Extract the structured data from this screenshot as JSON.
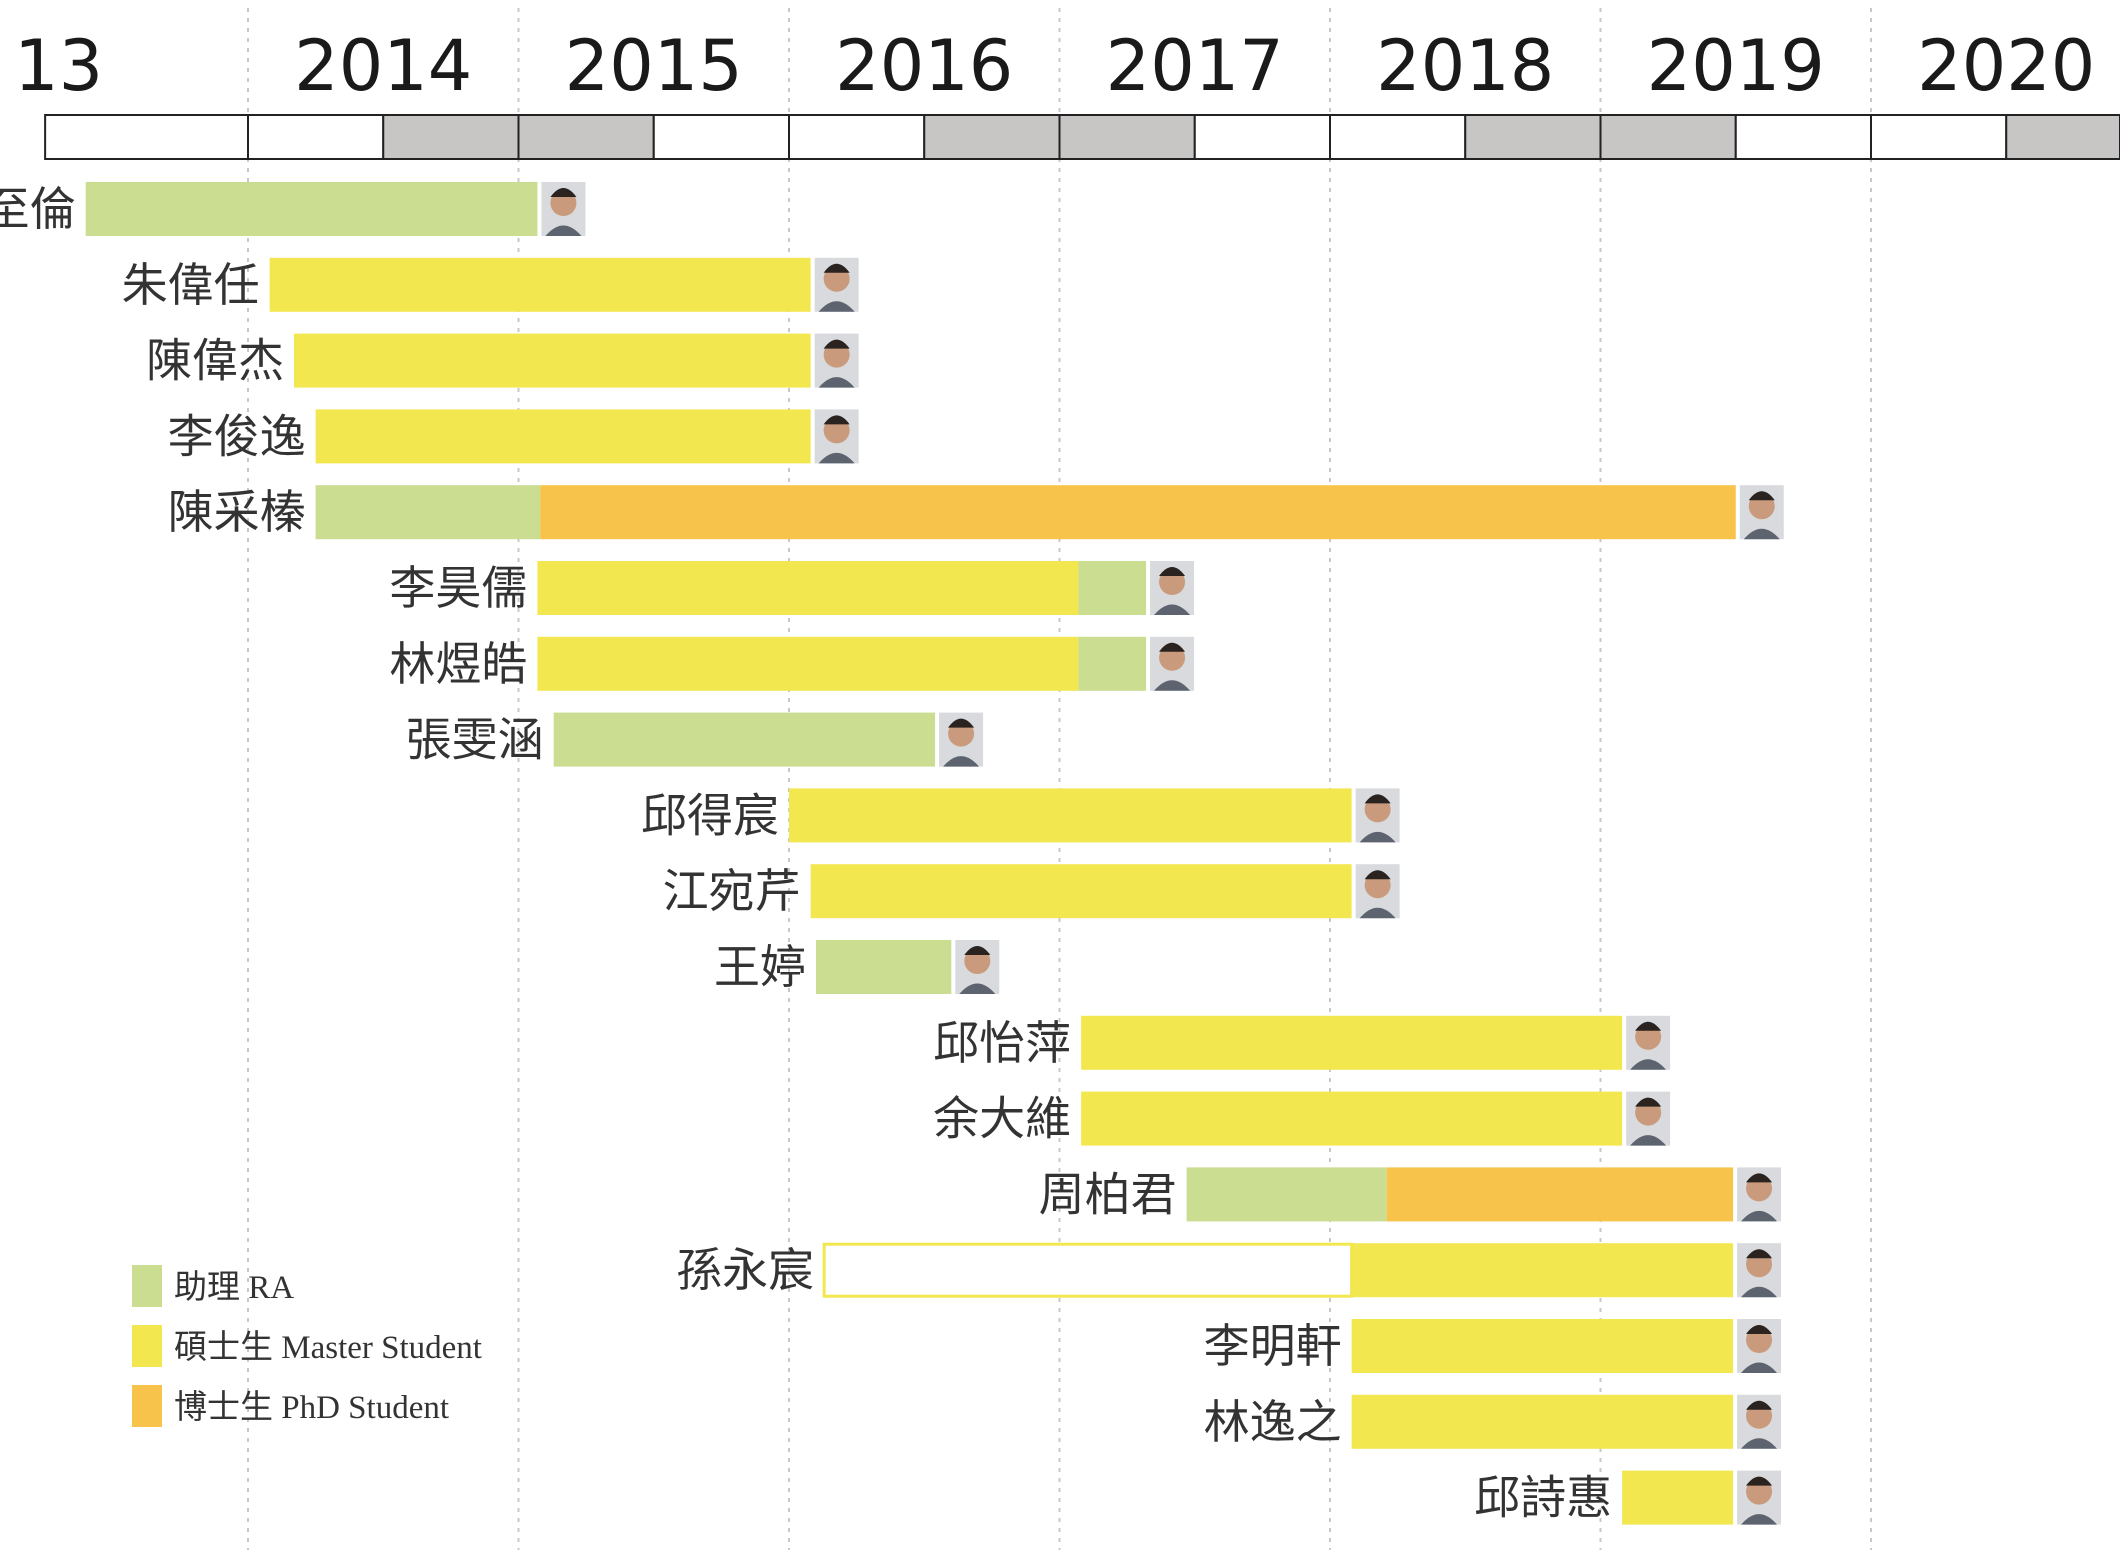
{
  "chart_data": {
    "type": "gantt",
    "x_axis": {
      "tick_labels": [
        "13",
        "2014",
        "2015",
        "2016",
        "2017",
        "2018",
        "2019",
        "2020"
      ],
      "range": [
        2013.25,
        2020.9
      ],
      "gridlines": true,
      "half_year_bands": true
    },
    "colors": {
      "RA": "#cadd90",
      "Master": "#f2e74f",
      "PhD": "#f7c34a",
      "band_shaded": "#c8c6c4"
    },
    "legend": {
      "placement": "bottom-left",
      "entries": [
        {
          "key": "RA",
          "label": "助理 RA"
        },
        {
          "key": "Master",
          "label": "碩士生 Master Student"
        },
        {
          "key": "PhD",
          "label": "博士生 PhD Student"
        }
      ]
    },
    "people": [
      {
        "name": "蕭至倫",
        "segments": [
          {
            "role": "RA",
            "start": 2013.4,
            "end": 2015.07
          }
        ]
      },
      {
        "name": "朱偉任",
        "segments": [
          {
            "role": "Master",
            "start": 2014.08,
            "end": 2016.08
          }
        ]
      },
      {
        "name": "陳偉杰",
        "segments": [
          {
            "role": "Master",
            "start": 2014.17,
            "end": 2016.08
          }
        ]
      },
      {
        "name": "李俊逸",
        "segments": [
          {
            "role": "Master",
            "start": 2014.25,
            "end": 2016.08
          }
        ]
      },
      {
        "name": "陳采榛",
        "segments": [
          {
            "role": "RA",
            "start": 2014.25,
            "end": 2015.08
          },
          {
            "role": "PhD",
            "start": 2015.08,
            "end": 2019.5
          }
        ]
      },
      {
        "name": "李昊儒",
        "segments": [
          {
            "role": "Master",
            "start": 2015.07,
            "end": 2017.07
          },
          {
            "role": "RA",
            "start": 2017.07,
            "end": 2017.32
          }
        ]
      },
      {
        "name": "林煜皓",
        "segments": [
          {
            "role": "Master",
            "start": 2015.07,
            "end": 2017.07
          },
          {
            "role": "RA",
            "start": 2017.07,
            "end": 2017.32
          }
        ]
      },
      {
        "name": "張雯涵",
        "segments": [
          {
            "role": "RA",
            "start": 2015.13,
            "end": 2016.54
          }
        ]
      },
      {
        "name": "邱得宸",
        "segments": [
          {
            "role": "Master",
            "start": 2016.0,
            "end": 2018.08
          }
        ]
      },
      {
        "name": "江宛芹",
        "segments": [
          {
            "role": "Master",
            "start": 2016.08,
            "end": 2018.08
          }
        ]
      },
      {
        "name": "王婷",
        "segments": [
          {
            "role": "RA",
            "start": 2016.1,
            "end": 2016.6
          }
        ]
      },
      {
        "name": "邱怡萍",
        "segments": [
          {
            "role": "Master",
            "start": 2017.08,
            "end": 2019.08
          }
        ]
      },
      {
        "name": "余大維",
        "segments": [
          {
            "role": "Master",
            "start": 2017.08,
            "end": 2019.08
          }
        ]
      },
      {
        "name": "周柏君",
        "segments": [
          {
            "role": "RA",
            "start": 2017.47,
            "end": 2018.21
          },
          {
            "role": "PhD",
            "start": 2018.21,
            "end": 2019.49
          }
        ]
      },
      {
        "name": "孫永宸",
        "segments": [
          {
            "role": "Master",
            "start": 2018.08,
            "end": 2019.49
          }
        ],
        "outline": {
          "start": 2016.13,
          "end": 2018.08
        }
      },
      {
        "name": "李明軒",
        "segments": [
          {
            "role": "Master",
            "start": 2018.08,
            "end": 2019.49
          }
        ]
      },
      {
        "name": "林逸之",
        "segments": [
          {
            "role": "Master",
            "start": 2018.08,
            "end": 2019.49
          }
        ]
      },
      {
        "name": "邱詩惠",
        "segments": [
          {
            "role": "Master",
            "start": 2019.08,
            "end": 2019.49
          }
        ]
      }
    ]
  }
}
